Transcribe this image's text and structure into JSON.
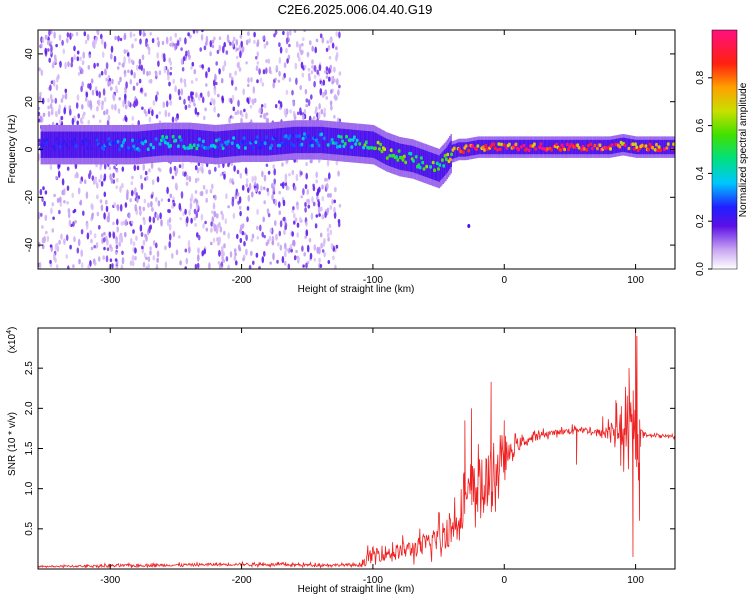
{
  "title": "C2E6.2025.006.04.40.G19",
  "chart_data": [
    {
      "type": "heatmap",
      "xlabel": "Height of straight line (km)",
      "ylabel": "Frequency (Hz)",
      "xlim": [
        -355,
        130
      ],
      "ylim": [
        -50,
        50
      ],
      "xticks": [
        -300,
        -200,
        -100,
        0,
        100
      ],
      "yticks": [
        -40,
        -20,
        0,
        20,
        40
      ],
      "grid": false,
      "colorbar": {
        "label": "Normalized spectral amplitude",
        "range": [
          0,
          1
        ],
        "ticks": [
          0.0,
          0.2,
          0.4,
          0.6,
          0.8
        ],
        "tick_labels": [
          "0.0",
          "0.2",
          "0.4",
          "0.6",
          "0.8"
        ]
      },
      "ridge": {
        "x": [
          -330,
          -300,
          -280,
          -260,
          -240,
          -220,
          -200,
          -180,
          -160,
          -140,
          -120,
          -100,
          -90,
          -80,
          -70,
          -60,
          -50,
          -45,
          -40,
          -35,
          -30,
          -20,
          -10,
          0,
          20,
          40,
          60,
          80,
          90,
          100,
          130
        ],
        "y": [
          2,
          2,
          2,
          3,
          3,
          2,
          3,
          3,
          4,
          4,
          3,
          2,
          -1,
          -3,
          -4,
          -6,
          -8,
          -5,
          -1,
          0,
          0,
          1,
          1,
          1,
          1,
          1,
          1,
          1,
          2,
          1,
          1
        ],
        "amplitude": [
          0.25,
          0.3,
          0.35,
          0.4,
          0.45,
          0.4,
          0.35,
          0.3,
          0.32,
          0.35,
          0.45,
          0.55,
          0.6,
          0.6,
          0.55,
          0.55,
          0.55,
          0.6,
          0.75,
          0.85,
          0.9,
          0.9,
          0.9,
          0.95,
          0.95,
          0.95,
          0.95,
          0.95,
          0.9,
          0.95,
          0.95
        ]
      },
      "noise_region_x": [
        -355,
        -125
      ]
    },
    {
      "type": "line",
      "xlabel": "Height of straight line (km)",
      "ylabel": "SNR (10 * v/v)",
      "y_multiplier": "(x10",
      "y_multiplier_exp": "4",
      "xlim": [
        -355,
        130
      ],
      "ylim": [
        0,
        3.0
      ],
      "xticks": [
        -300,
        -200,
        -100,
        0,
        100
      ],
      "yticks": [
        0.5,
        1.0,
        1.5,
        2.0,
        2.5
      ],
      "ytick_labels": [
        "0.5",
        "1.0",
        "1.5",
        "2.0",
        "2.5"
      ],
      "grid": false,
      "series": [
        {
          "color": "#ee2222",
          "x": [
            -355,
            -300,
            -250,
            -200,
            -150,
            -110,
            -105,
            -100,
            -90,
            -80,
            -70,
            -60,
            -50,
            -40,
            -35,
            -30,
            -25,
            -20,
            -15,
            -10,
            -5,
            0,
            10,
            20,
            30,
            40,
            50,
            55,
            60,
            65,
            70,
            75,
            80,
            85,
            90,
            95,
            100,
            105,
            110,
            120,
            130
          ],
          "values": [
            0.03,
            0.04,
            0.05,
            0.06,
            0.05,
            0.05,
            0.12,
            0.18,
            0.2,
            0.22,
            0.25,
            0.3,
            0.4,
            0.5,
            0.7,
            0.85,
            0.9,
            1.05,
            1.0,
            1.1,
            1.25,
            1.35,
            1.55,
            1.62,
            1.68,
            1.7,
            1.72,
            1.75,
            1.73,
            1.72,
            1.7,
            1.68,
            1.72,
            1.75,
            1.7,
            1.6,
            1.65,
            1.68,
            1.67,
            1.66,
            1.65
          ],
          "noise": [
            0.01,
            0.02,
            0.02,
            0.02,
            0.02,
            0.02,
            0.1,
            0.12,
            0.12,
            0.12,
            0.14,
            0.16,
            0.22,
            0.28,
            0.3,
            0.35,
            0.4,
            0.45,
            0.45,
            0.5,
            0.35,
            0.2,
            0.1,
            0.06,
            0.05,
            0.04,
            0.05,
            0.06,
            0.05,
            0.05,
            0.05,
            0.08,
            0.15,
            0.2,
            0.35,
            0.5,
            0.6,
            0.05,
            0.02,
            0.02,
            0.02
          ],
          "spikes": [
            [
              -30,
              1.85
            ],
            [
              -25,
              2.0
            ],
            [
              -10,
              2.33
            ],
            [
              0,
              1.85
            ],
            [
              55,
              1.3
            ],
            [
              75,
              1.9
            ],
            [
              85,
              2.1
            ],
            [
              95,
              2.5
            ],
            [
              98,
              0.15
            ],
            [
              100,
              3.0
            ],
            [
              101,
              2.9
            ],
            [
              103,
              0.6
            ]
          ]
        }
      ]
    }
  ]
}
